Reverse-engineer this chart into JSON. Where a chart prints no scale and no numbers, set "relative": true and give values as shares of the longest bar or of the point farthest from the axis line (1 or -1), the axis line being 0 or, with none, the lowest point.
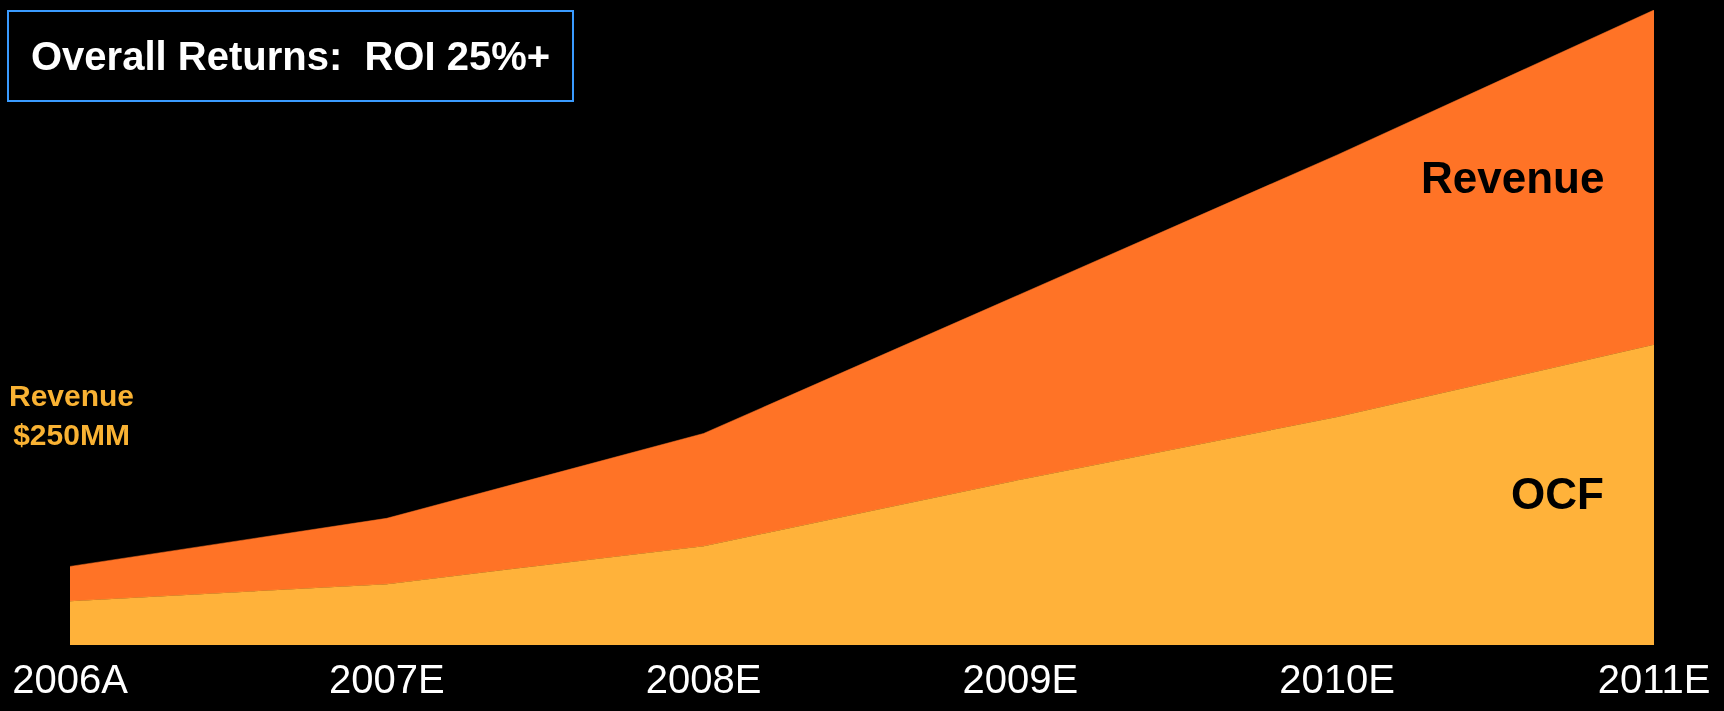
{
  "chart_data": {
    "type": "area",
    "stacked": true,
    "relative": true,
    "legend": false,
    "grid": false,
    "categories": [
      "2006A",
      "2007E",
      "2008E",
      "2009E",
      "2010E",
      "2011E"
    ],
    "series": [
      {
        "name": "OCF",
        "color": "#ffb23a",
        "values": [
          0.066,
          0.093,
          0.153,
          0.258,
          0.357,
          0.471
        ]
      },
      {
        "name": "Revenue",
        "color": "#ff7326",
        "values": [
          0.055,
          0.104,
          0.178,
          0.293,
          0.414,
          0.529
        ]
      }
    ],
    "annotations": [
      "Overall Returns:  ROI 25%+",
      "Revenue\n$250MM"
    ]
  }
}
